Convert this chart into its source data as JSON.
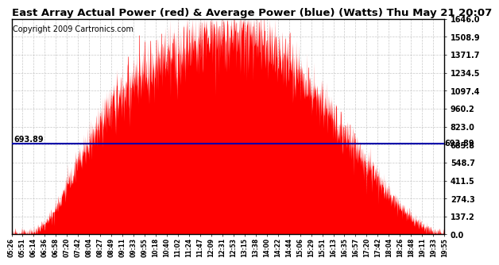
{
  "title": "East Array Actual Power (red) & Average Power (blue) (Watts) Thu May 21 20:07",
  "copyright": "Copyright 2009 Cartronics.com",
  "avg_power": 693.89,
  "ymax": 1646.0,
  "ymin": 0.0,
  "yticks": [
    0.0,
    137.2,
    274.3,
    411.5,
    548.7,
    685.8,
    823.0,
    960.2,
    1097.4,
    1234.5,
    1371.7,
    1508.9,
    1646.0
  ],
  "xtick_labels": [
    "05:26",
    "05:51",
    "06:14",
    "06:36",
    "06:58",
    "07:20",
    "07:42",
    "08:04",
    "08:27",
    "08:49",
    "09:11",
    "09:33",
    "09:55",
    "10:18",
    "10:40",
    "11:02",
    "11:24",
    "11:47",
    "12:09",
    "12:31",
    "12:53",
    "13:15",
    "13:38",
    "14:00",
    "14:22",
    "14:44",
    "15:06",
    "15:29",
    "15:51",
    "16:13",
    "16:35",
    "16:57",
    "17:20",
    "17:42",
    "18:04",
    "18:26",
    "18:48",
    "19:11",
    "19:33",
    "19:55"
  ],
  "fill_color": "#FF0000",
  "line_color": "#0000AA",
  "bg_color": "#FFFFFF",
  "grid_color": "#BBBBBB",
  "title_fontsize": 9.5,
  "copyright_fontsize": 7,
  "avg_label": "693.89"
}
